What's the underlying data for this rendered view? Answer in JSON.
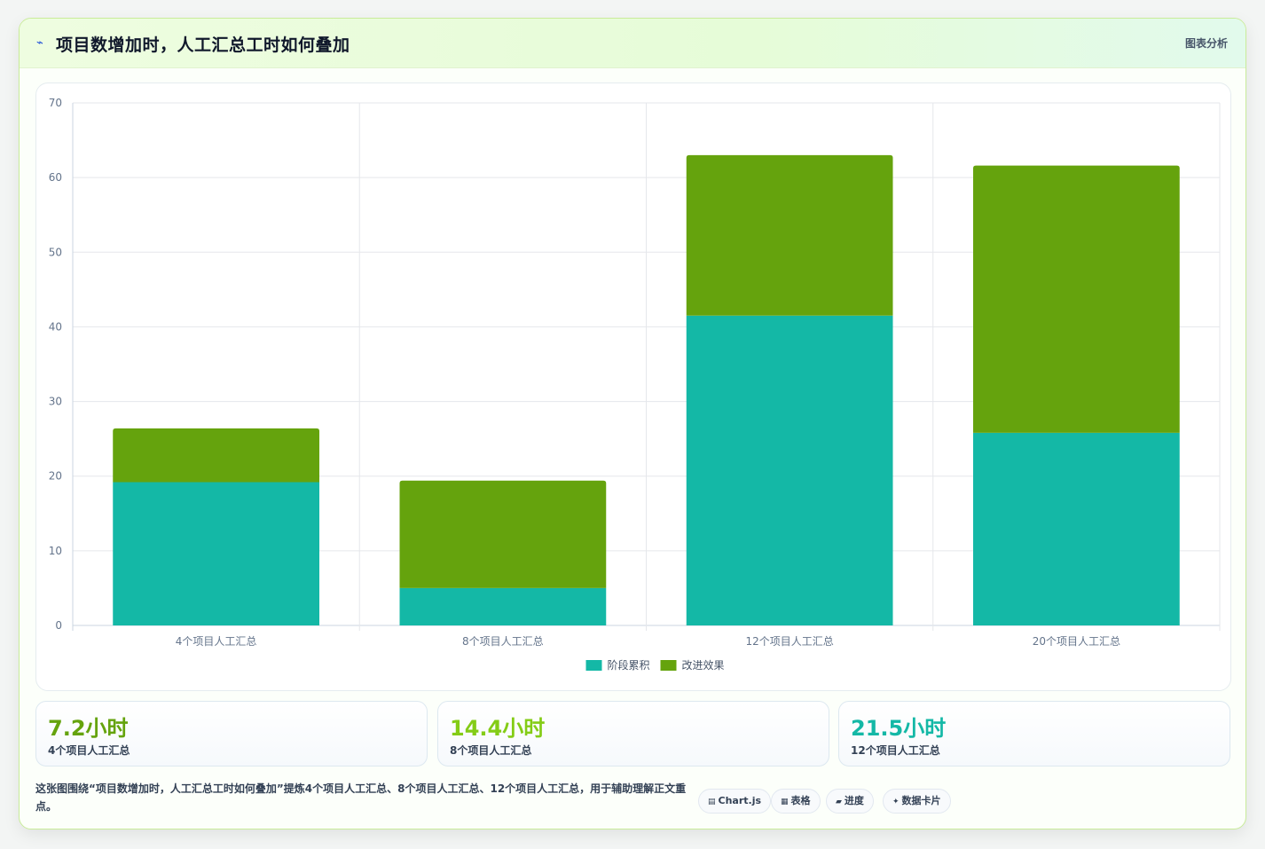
{
  "header": {
    "title": "项目数增加时，人工汇总工时如何叠加",
    "tag": "图表分析"
  },
  "chart_data": {
    "type": "bar",
    "stacked": true,
    "categories": [
      "4个项目人工汇总",
      "8个项目人工汇总",
      "12个项目人工汇总",
      "20个项目人工汇总"
    ],
    "series": [
      {
        "name": "阶段累积",
        "color": "#14b8a6",
        "values": [
          19.2,
          5.0,
          41.5,
          25.8
        ]
      },
      {
        "name": "改进效果",
        "color": "#65a30d",
        "values": [
          7.2,
          14.4,
          21.5,
          35.8
        ]
      }
    ],
    "ylim": [
      0,
      70
    ],
    "yticks": [
      0,
      10,
      20,
      30,
      40,
      50,
      60,
      70
    ],
    "grid": true,
    "legend": "bottom"
  },
  "stats": [
    {
      "value": "7.2小时",
      "label": "4个项目人工汇总",
      "color": "#65a30d"
    },
    {
      "value": "14.4小时",
      "label": "8个项目人工汇总",
      "color": "#84cc16"
    },
    {
      "value": "21.5小时",
      "label": "12个项目人工汇总",
      "color": "#14b8a6"
    }
  ],
  "footer": {
    "text": "这张图围绕“项目数增加时，人工汇总工时如何叠加”提炼4个项目人工汇总、8个项目人工汇总、12个项目人工汇总，用于辅助理解正文重点。",
    "chips": [
      {
        "icon": "▤",
        "label": "Chart.js"
      },
      {
        "icon": "▦",
        "label": "表格"
      },
      {
        "icon": "▰",
        "label": "进度"
      },
      {
        "icon": "✦",
        "label": "数据卡片"
      }
    ]
  }
}
